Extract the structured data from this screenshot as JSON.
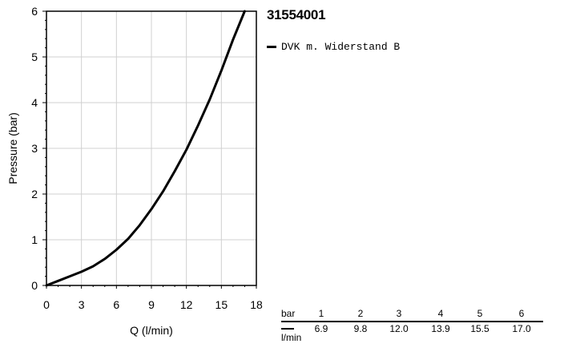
{
  "title": "31554001",
  "chart_data": {
    "type": "line",
    "xlabel": "Q (l/min)",
    "ylabel": "Pressure (bar)",
    "xlim": [
      0,
      18
    ],
    "ylim": [
      0,
      6
    ],
    "xticks": [
      "0",
      "3",
      "6",
      "9",
      "12",
      "15",
      "18"
    ],
    "yticks": [
      "0",
      "1",
      "2",
      "3",
      "4",
      "5",
      "6"
    ],
    "grid": true,
    "legend_position": "right",
    "series": [
      {
        "name": "DVK m. Widerstand B",
        "color": "#000000",
        "x": [
          0,
          1,
          2,
          3,
          4,
          5,
          6,
          7,
          8,
          9,
          10,
          11,
          12,
          13,
          14,
          15,
          16,
          17
        ],
        "y": [
          0,
          0.1,
          0.2,
          0.3,
          0.42,
          0.58,
          0.78,
          1.02,
          1.32,
          1.67,
          2.06,
          2.5,
          2.97,
          3.5,
          4.07,
          4.7,
          5.38,
          6.0
        ]
      }
    ]
  },
  "flow_table": {
    "pressure_unit": "bar",
    "flow_unit": "l/min",
    "pressure": [
      "1",
      "2",
      "3",
      "4",
      "5",
      "6"
    ],
    "flow": [
      "6.9",
      "9.8",
      "12.0",
      "13.9",
      "15.5",
      "17.0"
    ]
  }
}
